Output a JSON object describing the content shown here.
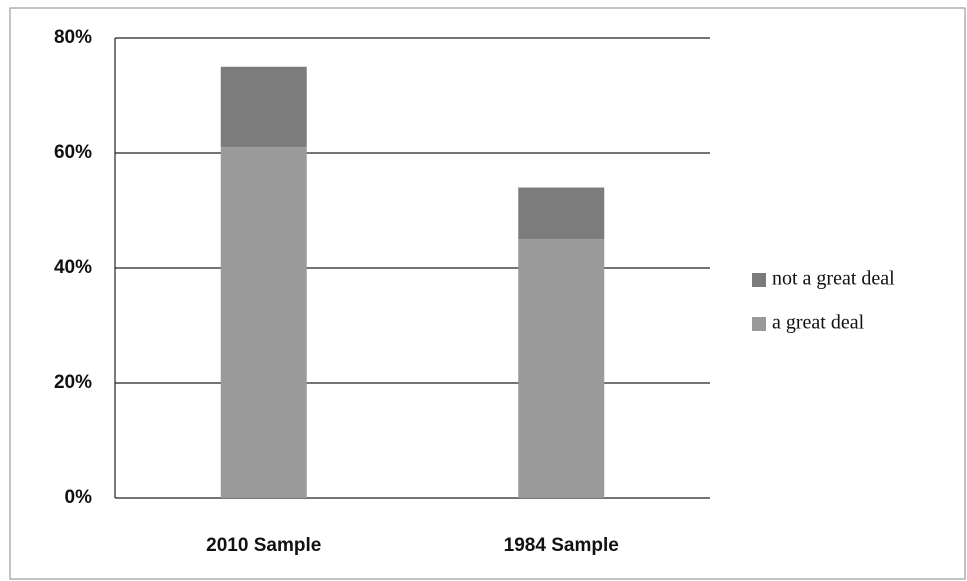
{
  "chart_data": {
    "type": "stacked_bar",
    "categories": [
      "2010 Sample",
      "1984 Sample"
    ],
    "series": [
      {
        "name": "a great deal",
        "color": "#9a9a9a",
        "values": [
          61,
          45
        ]
      },
      {
        "name": "not a great deal",
        "color": "#7c7c7c",
        "values": [
          14,
          9
        ]
      }
    ],
    "ylim": [
      0,
      80
    ],
    "yticks": [
      {
        "value": 0,
        "label": "0%"
      },
      {
        "value": 20,
        "label": "20%"
      },
      {
        "value": 40,
        "label": "40%"
      },
      {
        "value": 60,
        "label": "60%"
      },
      {
        "value": 80,
        "label": "80%"
      }
    ],
    "grid": true,
    "legend": "right"
  }
}
